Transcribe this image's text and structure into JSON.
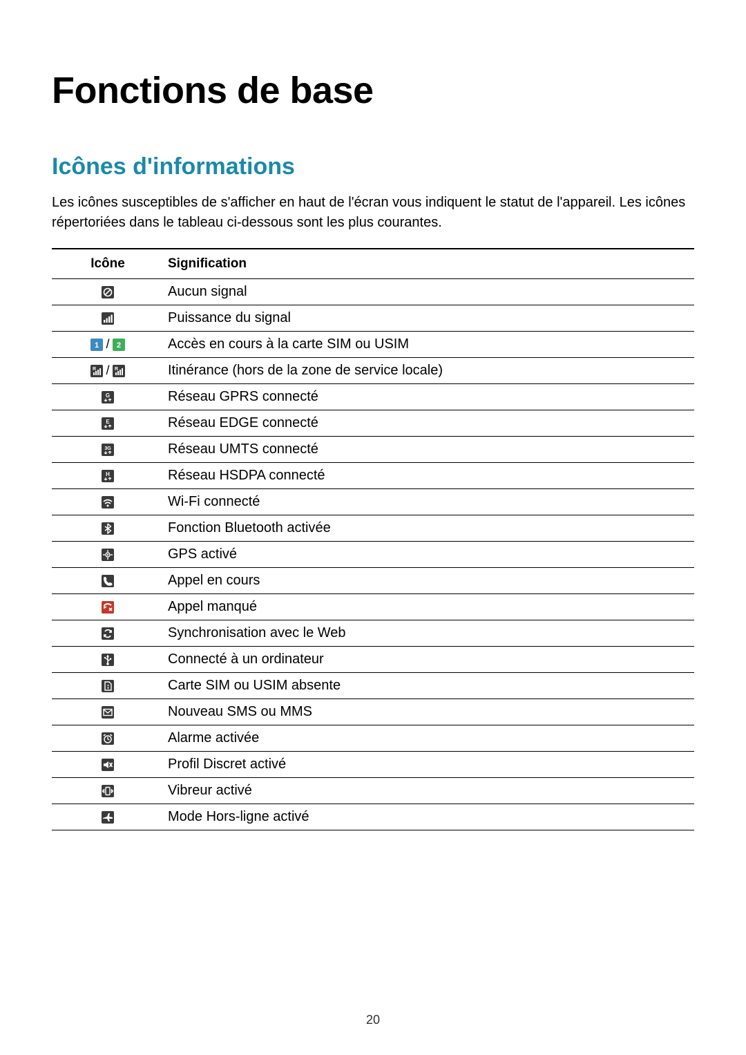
{
  "page_number": "20",
  "chapter_title": "Fonctions de base",
  "section_title": "Icônes d'informations",
  "section_title_color": "#1a8aa8",
  "intro_text": "Les icônes susceptibles de s'afficher en haut de l'écran vous indiquent le statut de l'appareil. Les icônes répertoriées dans le tableau ci-dessous sont les plus courantes.",
  "table": {
    "columns": [
      "Icône",
      "Signification"
    ],
    "rows": [
      {
        "icon": "no-signal",
        "meaning": "Aucun signal"
      },
      {
        "icon": "signal",
        "meaning": "Puissance du signal"
      },
      {
        "icon": "sim-1-2",
        "meaning": "Accès en cours à la carte SIM ou USIM"
      },
      {
        "icon": "roaming",
        "meaning": "Itinérance (hors de la zone de service locale)"
      },
      {
        "icon": "gprs",
        "meaning": "Réseau GPRS connecté"
      },
      {
        "icon": "edge",
        "meaning": "Réseau EDGE connecté"
      },
      {
        "icon": "umts",
        "meaning": "Réseau UMTS connecté"
      },
      {
        "icon": "hsdpa",
        "meaning": "Réseau HSDPA connecté"
      },
      {
        "icon": "wifi",
        "meaning": "Wi-Fi connecté"
      },
      {
        "icon": "bluetooth",
        "meaning": "Fonction Bluetooth activée"
      },
      {
        "icon": "gps",
        "meaning": "GPS activé"
      },
      {
        "icon": "call",
        "meaning": "Appel en cours"
      },
      {
        "icon": "missed-call",
        "meaning": "Appel manqué"
      },
      {
        "icon": "sync",
        "meaning": "Synchronisation avec le Web"
      },
      {
        "icon": "usb",
        "meaning": "Connecté à un ordinateur"
      },
      {
        "icon": "no-sim",
        "meaning": "Carte SIM ou USIM absente"
      },
      {
        "icon": "message",
        "meaning": "Nouveau SMS ou MMS"
      },
      {
        "icon": "alarm",
        "meaning": "Alarme activée"
      },
      {
        "icon": "silent",
        "meaning": "Profil Discret activé"
      },
      {
        "icon": "vibrate",
        "meaning": "Vibreur activé"
      },
      {
        "icon": "airplane",
        "meaning": "Mode Hors-ligne activé"
      }
    ]
  },
  "colors": {
    "text": "#000000",
    "accent": "#1a8aa8",
    "icon_bg": "#3a3a3a",
    "icon_fg": "#ffffff",
    "sim1_bg": "#3d8abf",
    "sim2_bg": "#3fae5a",
    "missed_bg": "#c1392b"
  }
}
